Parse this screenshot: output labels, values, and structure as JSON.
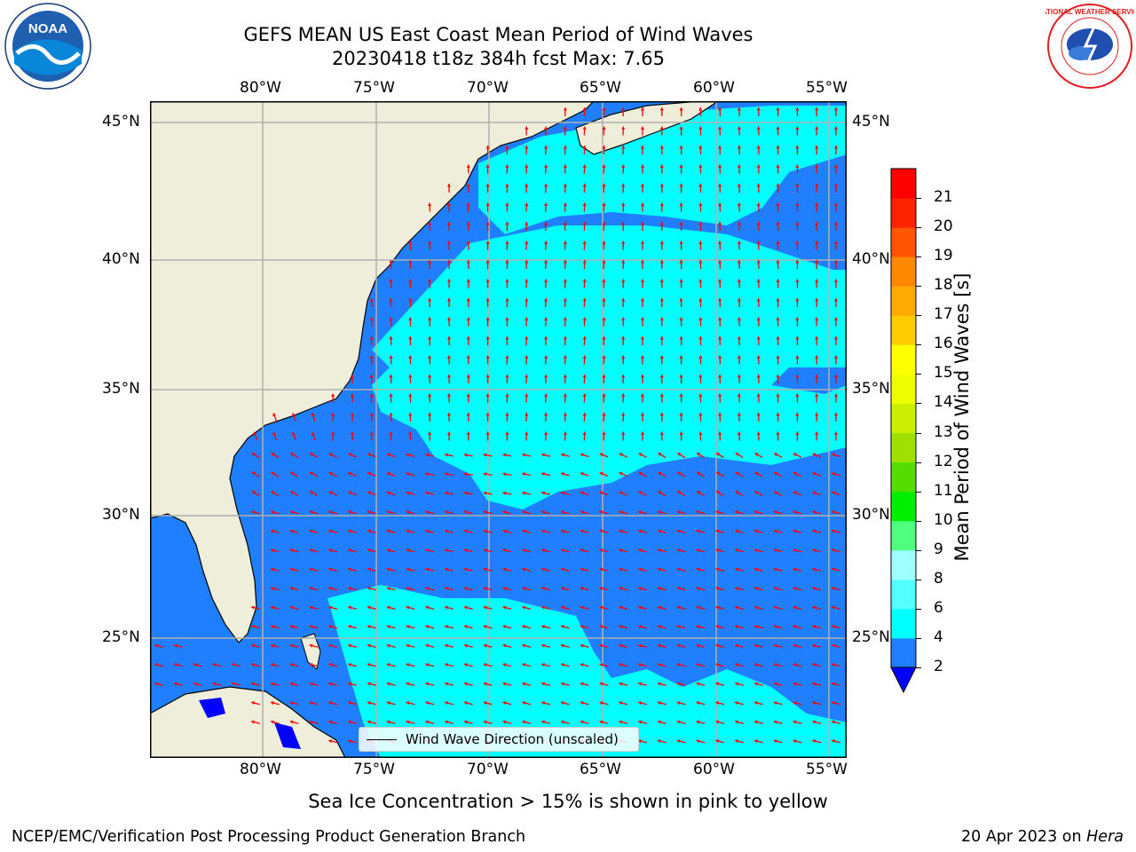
{
  "title": {
    "line1": "GEFS MEAN US East Coast Mean Period of Wind Waves",
    "line2": "20230418 t18z 384h fcst   Max: 7.65"
  },
  "map": {
    "lon_range": [
      -85,
      -54.5
    ],
    "lat_range": [
      20.5,
      46.5
    ],
    "lon_ticks": [
      "80°W",
      "75°W",
      "70°W",
      "65°W",
      "60°W",
      "55°W"
    ],
    "lat_ticks": [
      "45°N",
      "40°N",
      "35°N",
      "30°N",
      "25°N"
    ],
    "colors": {
      "land": "#efeedb",
      "ocean_2_4": "#1f7fff",
      "ocean_4_6": "#00ffff",
      "ocean_lt2": "#0000ff",
      "arrow": "#ff0000",
      "grid": "#b0b0b0"
    }
  },
  "legend": {
    "label": "Wind Wave Direction (unscaled)"
  },
  "colorbar": {
    "label": "Mean Period of Wind Waves [s]",
    "ticks": [
      "2",
      "4",
      "6",
      "8",
      "9",
      "10",
      "11",
      "12",
      "13",
      "14",
      "15",
      "16",
      "17",
      "18",
      "19",
      "20",
      "21"
    ],
    "colors": [
      "#0000ff",
      "#1f7fff",
      "#00ffff",
      "#55ffff",
      "#a0ffff",
      "#50ff80",
      "#00ee00",
      "#55dd00",
      "#a0e000",
      "#ccee00",
      "#eeff00",
      "#ffff00",
      "#ffcc00",
      "#ffaa00",
      "#ff8800",
      "#ff5500",
      "#ff2200",
      "#ff0000"
    ]
  },
  "subtitle": "Sea Ice Concentration > 15% is shown in pink to yellow",
  "footer": {
    "left": "NCEP/EMC/Verification Post Processing Product Generation Branch",
    "right_date": "20 Apr 2023 on ",
    "right_host": "Hera"
  },
  "logos": {
    "left": "NOAA",
    "right": "NATIONAL WEATHER SERVICE"
  }
}
